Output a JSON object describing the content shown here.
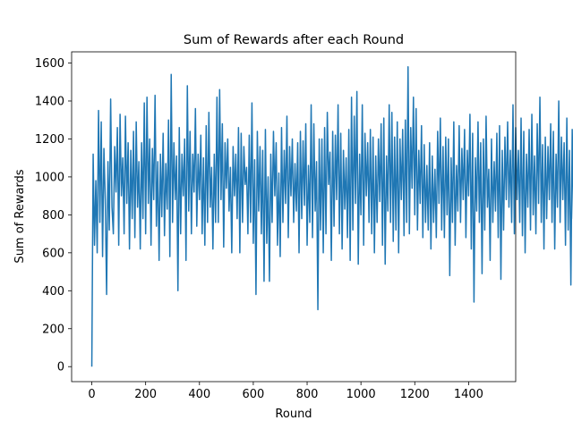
{
  "chart_data": {
    "type": "line",
    "title": "Sum of Rewards after each Round",
    "xlabel": "Round",
    "ylabel": "Sum of Rewards",
    "xlim": [
      -75,
      1575
    ],
    "ylim": [
      -79,
      1659
    ],
    "xticks": [
      0,
      200,
      400,
      600,
      800,
      1000,
      1200,
      1400
    ],
    "yticks": [
      0,
      200,
      400,
      600,
      800,
      1000,
      1200,
      1400,
      1600
    ],
    "grid": false,
    "legend": "none",
    "series": [
      {
        "color": "#1f77b4",
        "x_start": 0,
        "x_step": 5,
        "values": [
          0,
          1120,
          640,
          980,
          600,
          1350,
          760,
          1290,
          580,
          1150,
          880,
          380,
          1080,
          720,
          1410,
          840,
          700,
          1160,
          920,
          1260,
          640,
          1330,
          900,
          1100,
          700,
          1320,
          860,
          1180,
          620,
          1140,
          780,
          1240,
          680,
          1290,
          840,
          1080,
          620,
          1180,
          780,
          1390,
          700,
          1420,
          860,
          1200,
          640,
          1150,
          880,
          1430,
          740,
          1080,
          560,
          1120,
          790,
          1230,
          690,
          1070,
          830,
          1300,
          580,
          1540,
          760,
          1180,
          880,
          1110,
          400,
          1260,
          700,
          1120,
          900,
          1200,
          560,
          1480,
          820,
          1240,
          700,
          1120,
          920,
          1360,
          740,
          1120,
          880,
          1220,
          700,
          1100,
          640,
          1270,
          760,
          1340,
          840,
          1050,
          620,
          1120,
          760,
          1420,
          760,
          1460,
          880,
          1280,
          630,
          1180,
          940,
          1200,
          820,
          1050,
          600,
          1160,
          900,
          1120,
          780,
          1260,
          600,
          1230,
          760,
          1160,
          960,
          1050,
          700,
          1220,
          760,
          1390,
          650,
          1090,
          380,
          1240,
          820,
          1160,
          700,
          1140,
          450,
          1250,
          650,
          1000,
          450,
          1120,
          760,
          1240,
          900,
          1180,
          640,
          1020,
          580,
          1260,
          760,
          1140,
          860,
          1320,
          680,
          1160,
          900,
          1200,
          760,
          1070,
          820,
          1180,
          600,
          1240,
          780,
          1190,
          850,
          1280,
          640,
          1060,
          760,
          1380,
          680,
          1280,
          820,
          1080,
          300,
          1200,
          720,
          1200,
          600,
          1260,
          700,
          1340,
          960,
          1130,
          560,
          1240,
          740,
          1220,
          880,
          1380,
          700,
          1230,
          620,
          1140,
          830,
          1100,
          680,
          1250,
          560,
          1420,
          720,
          1320,
          860,
          1450,
          540,
          1120,
          800,
          1380,
          640,
          1230,
          900,
          1180,
          760,
          1250,
          700,
          1210,
          600,
          1110,
          760,
          1200,
          870,
          1280,
          640,
          1310,
          540,
          1110,
          820,
          1380,
          760,
          1340,
          660,
          1210,
          720,
          1290,
          600,
          1200,
          880,
          1250,
          690,
          1300,
          760,
          1580,
          700,
          1260,
          940,
          1420,
          800,
          1360,
          720,
          1140,
          860,
          1270,
          680,
          1170,
          760,
          1060,
          720,
          1180,
          620,
          1110,
          760,
          1040,
          680,
          1240,
          860,
          1310,
          720,
          1160,
          680,
          1210,
          800,
          1200,
          480,
          1100,
          760,
          1290,
          640,
          1060,
          820,
          1270,
          760,
          1150,
          880,
          1250,
          680,
          1140,
          900,
          1330,
          620,
          1230,
          340,
          1100,
          820,
          1290,
          760,
          1180,
          490,
          1200,
          720,
          1320,
          840,
          1040,
          560,
          1200,
          760,
          1080,
          820,
          1230,
          680,
          1270,
          460,
          1140,
          720,
          1210,
          880,
          1290,
          840,
          1140,
          760,
          1380,
          700,
          1260,
          880,
          1140,
          760,
          1310,
          690,
          1240,
          600,
          1120,
          840,
          1250,
          720,
          1330,
          800,
          1110,
          700,
          1280,
          860,
          1420,
          760,
          1170,
          620,
          1210,
          780,
          1160,
          880,
          1280,
          760,
          1240,
          620,
          1120,
          840,
          1400,
          760,
          1210,
          880,
          1180,
          640,
          1310,
          720,
          1140,
          430,
          1250,
          780,
          1160,
          860,
          1240,
          520,
          1140,
          760,
          1380,
          640,
          1180,
          820,
          1260,
          700,
          1130,
          760,
          1220,
          880,
          1170,
          640,
          1360,
          780,
          1190,
          840,
          1150,
          700,
          1110,
          560,
          1250,
          900,
          1060,
          760,
          1380,
          640,
          1440,
          820,
          1510,
          560,
          1250
        ]
      }
    ]
  }
}
